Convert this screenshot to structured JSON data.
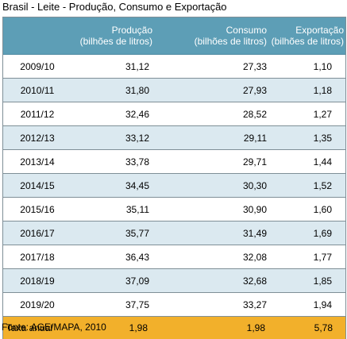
{
  "title": "Brasil - Leite - Produção, Consumo e Exportação",
  "table": {
    "headers": [
      {
        "line1": "",
        "line2": ""
      },
      {
        "line1": "Produção",
        "line2": "(bilhões de litros)"
      },
      {
        "line1": "Consumo",
        "line2": "(bilhões de litros)"
      },
      {
        "line1": "Exportação",
        "line2": "(bilhões de litros)"
      }
    ],
    "rows": [
      [
        "2009/10",
        "31,12",
        "27,33",
        "1,10"
      ],
      [
        "2010/11",
        "31,80",
        "27,93",
        "1,18"
      ],
      [
        "2011/12",
        "32,46",
        "28,52",
        "1,27"
      ],
      [
        "2012/13",
        "33,12",
        "29,11",
        "1,35"
      ],
      [
        "2013/14",
        "33,78",
        "29,71",
        "1,44"
      ],
      [
        "2014/15",
        "34,45",
        "30,30",
        "1,52"
      ],
      [
        "2015/16",
        "35,11",
        "30,90",
        "1,60"
      ],
      [
        "2016/17",
        "35,77",
        "31,49",
        "1,69"
      ],
      [
        "2017/18",
        "36,43",
        "32,08",
        "1,77"
      ],
      [
        "2018/19",
        "37,09",
        "32,68",
        "1,85"
      ],
      [
        "2019/20",
        "37,75",
        "33,27",
        "1,94"
      ]
    ],
    "total": [
      "Taxa anual",
      "1,98",
      "1,98",
      "5,78"
    ]
  },
  "source": "Fonte: AGE/MAPA, 2010",
  "colors": {
    "header_bg": "#5d9eb6",
    "row_alt_bg": "#dbe9f0",
    "total_bg": "#f2b02b"
  }
}
